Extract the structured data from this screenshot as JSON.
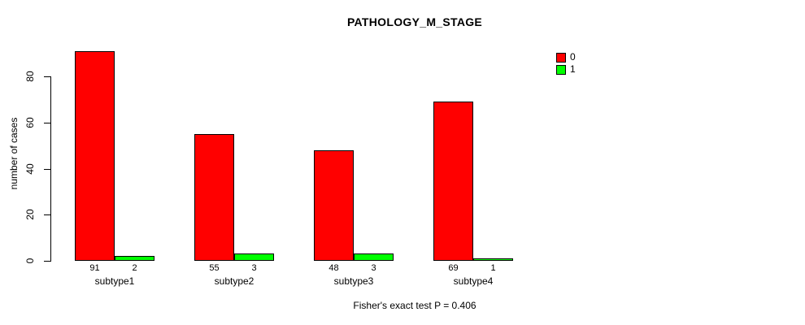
{
  "title": "PATHOLOGY_M_STAGE",
  "footer": "Fisher's exact test P = 0.406",
  "y_axis": {
    "label": "number of cases"
  },
  "chart_data": {
    "type": "bar",
    "title": "PATHOLOGY_M_STAGE",
    "xlabel": "",
    "ylabel": "number of cases",
    "categories": [
      "subtype1",
      "subtype2",
      "subtype3",
      "subtype4"
    ],
    "series": [
      {
        "name": "0",
        "color": "#ff0000",
        "values": [
          91,
          55,
          48,
          69
        ]
      },
      {
        "name": "1",
        "color": "#00ff00",
        "values": [
          2,
          3,
          3,
          1
        ]
      }
    ],
    "bar_value_labels": [
      [
        "91",
        "2"
      ],
      [
        "55",
        "3"
      ],
      [
        "48",
        "3"
      ],
      [
        "69",
        "1"
      ]
    ],
    "ylim": [
      0,
      80
    ],
    "yticks": [
      0,
      20,
      40,
      60,
      80
    ],
    "grid": false,
    "legend_position": "top-right",
    "annotation": "Fisher's exact test P = 0.406"
  }
}
